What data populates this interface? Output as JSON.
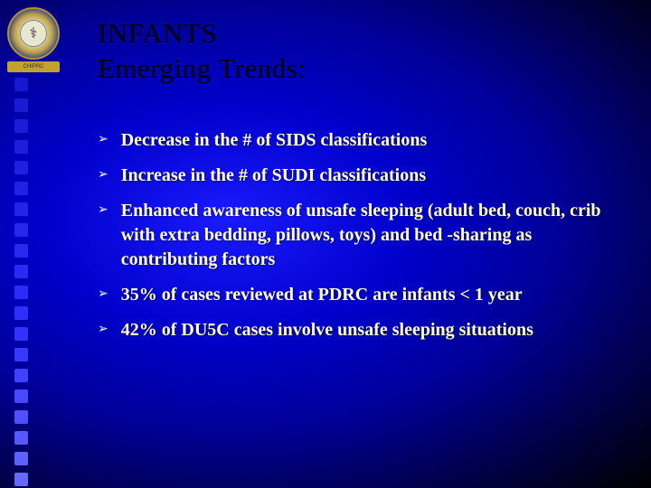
{
  "colors": {
    "background_gradient_inner": "#1a1aff",
    "background_gradient_outer": "#000000",
    "title_color": "#000000",
    "bullet_text_color": "#ffffcc",
    "bullet_marker_color": "#ffffcc"
  },
  "logo": {
    "banner_text": "CHIPRC"
  },
  "side_squares": {
    "count": 20,
    "colors": [
      "#1818d0",
      "#1a1ad4",
      "#1c1cd8",
      "#1e1edc",
      "#2020e0",
      "#2222e4",
      "#2424e8",
      "#2626ec",
      "#2828f0",
      "#2a2af4",
      "#2c2cf8",
      "#2e2efc",
      "#3030ff",
      "#3838ff",
      "#4040ff",
      "#4848ff",
      "#5050ff",
      "#5858ff",
      "#6060ff",
      "#6868ff"
    ]
  },
  "title": {
    "line1": "INFANTS",
    "line2": "Emerging Trends:",
    "fontsize": 31,
    "font_family": "Georgia, Times New Roman, serif"
  },
  "bullets": {
    "marker": "➢",
    "fontsize": 20,
    "font_weight": "bold",
    "items": [
      "Decrease in the # of SIDS classifications",
      "Increase in the # of SUDI classifications",
      "Enhanced awareness of unsafe sleeping (adult bed, couch, crib with extra bedding, pillows, toys) and bed -sharing as contributing factors",
      "35% of cases reviewed at PDRC are infants < 1 year",
      "42% of DU5C cases involve unsafe sleeping situations"
    ]
  }
}
